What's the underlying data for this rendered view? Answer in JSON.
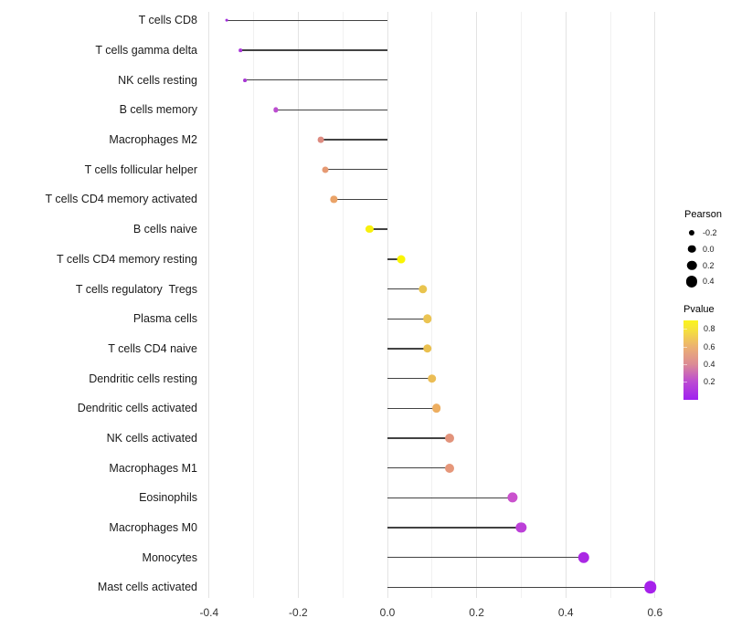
{
  "chart_data": {
    "type": "lollipop",
    "orientation": "horizontal",
    "title": "",
    "xlabel": "",
    "ylabel": "",
    "grid": true,
    "x_axis": {
      "range": [
        -0.44,
        0.64
      ],
      "major_ticks": [
        -0.4,
        -0.2,
        0.0,
        0.2,
        0.4,
        0.6
      ],
      "tick_labels": [
        "-0.4",
        "-0.2",
        "0.0",
        "0.2",
        "0.4",
        "0.6"
      ],
      "minor_step": 0.1
    },
    "points": [
      {
        "label": "T cells CD8",
        "pearson": -0.36,
        "pvalue_approx": 0.1,
        "color": "#A22FDC"
      },
      {
        "label": "T cells gamma delta",
        "pearson": -0.33,
        "pvalue_approx": 0.12,
        "color": "#A936D8"
      },
      {
        "label": "NK cells resting",
        "pearson": -0.32,
        "pvalue_approx": 0.13,
        "color": "#A837D4"
      },
      {
        "label": "B cells memory",
        "pearson": -0.25,
        "pvalue_approx": 0.22,
        "color": "#BC4DD0"
      },
      {
        "label": "Macrophages M2",
        "pearson": -0.15,
        "pvalue_approx": 0.48,
        "color": "#DD8B80"
      },
      {
        "label": "T cells follicular helper",
        "pearson": -0.14,
        "pvalue_approx": 0.53,
        "color": "#E69A73"
      },
      {
        "label": "T cells CD4 memory activated",
        "pearson": -0.12,
        "pvalue_approx": 0.57,
        "color": "#EAA368"
      },
      {
        "label": "B cells naive",
        "pearson": -0.04,
        "pvalue_approx": 0.88,
        "color": "#F8F00D"
      },
      {
        "label": "T cells CD4 memory resting",
        "pearson": 0.03,
        "pvalue_approx": 0.92,
        "color": "#FAF502"
      },
      {
        "label": "T cells regulatory  Tregs",
        "pearson": 0.08,
        "pvalue_approx": 0.67,
        "color": "#E9C44E"
      },
      {
        "label": "Plasma cells",
        "pearson": 0.09,
        "pvalue_approx": 0.65,
        "color": "#EBC452"
      },
      {
        "label": "T cells CD4 naive",
        "pearson": 0.09,
        "pvalue_approx": 0.64,
        "color": "#EAC04F"
      },
      {
        "label": "Dendritic cells resting",
        "pearson": 0.1,
        "pvalue_approx": 0.62,
        "color": "#EBBD55"
      },
      {
        "label": "Dendritic cells activated",
        "pearson": 0.11,
        "pvalue_approx": 0.58,
        "color": "#EDAE60"
      },
      {
        "label": "NK cells activated",
        "pearson": 0.14,
        "pvalue_approx": 0.5,
        "color": "#E2937B"
      },
      {
        "label": "Macrophages M1",
        "pearson": 0.14,
        "pvalue_approx": 0.51,
        "color": "#E6977A"
      },
      {
        "label": "Eosinophils",
        "pearson": 0.28,
        "pvalue_approx": 0.25,
        "color": "#CA52CD"
      },
      {
        "label": "Macrophages M0",
        "pearson": 0.3,
        "pvalue_approx": 0.21,
        "color": "#BC40D8"
      },
      {
        "label": "Monocytes",
        "pearson": 0.44,
        "pvalue_approx": 0.1,
        "color": "#AA28E4"
      },
      {
        "label": "Mast cells activated",
        "pearson": 0.59,
        "pvalue_approx": 0.06,
        "color": "#A621EB"
      }
    ],
    "legend_size": {
      "title": "Pearson",
      "dot_color": "#000000",
      "entries": [
        {
          "label": "-0.2",
          "value": -0.2
        },
        {
          "label": "0.0",
          "value": 0.0
        },
        {
          "label": "0.2",
          "value": 0.2
        },
        {
          "label": "0.4",
          "value": 0.4
        }
      ]
    },
    "legend_color": {
      "title": "Pvalue",
      "tick_labels": [
        "0.8",
        "0.6",
        "0.4",
        "0.2"
      ],
      "gradient_stops_bottom_to_top": [
        "#A020F0",
        "#BC4CD2",
        "#DC8C95",
        "#ECB171",
        "#F6E33A",
        "#FBF51D"
      ],
      "low_color": "#A020F0",
      "high_color": "#FBF51D"
    }
  }
}
